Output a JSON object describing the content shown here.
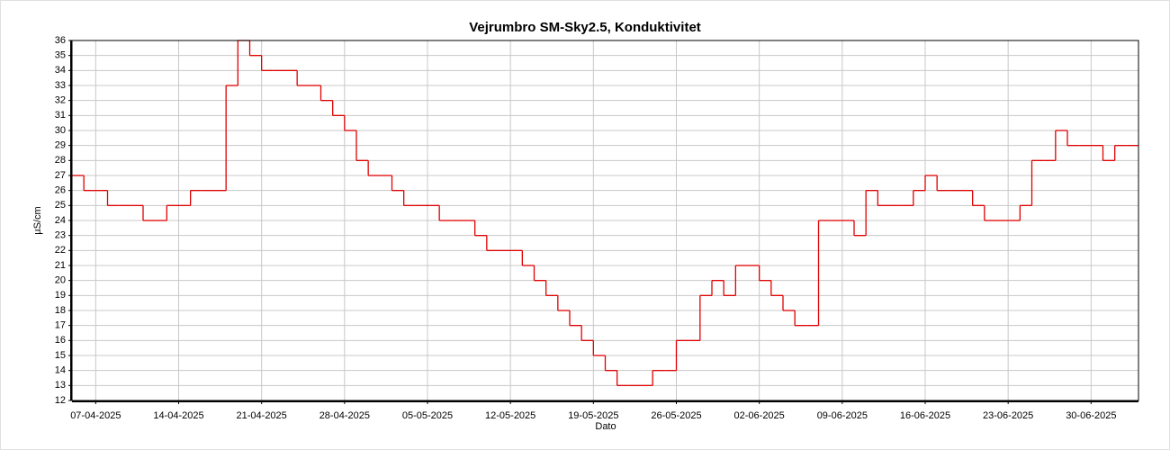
{
  "chart_data": {
    "type": "line",
    "step": true,
    "title": "Vejrumbro SM-Sky2.5, Konduktivitet",
    "x_label": "Dato",
    "y_label": "µS/cm",
    "x": [
      "05-04-2025",
      "06-04-2025",
      "07-04-2025",
      "08-04-2025",
      "09-04-2025",
      "10-04-2025",
      "11-04-2025",
      "12-04-2025",
      "13-04-2025",
      "14-04-2025",
      "15-04-2025",
      "16-04-2025",
      "17-04-2025",
      "18-04-2025",
      "19-04-2025",
      "20-04-2025",
      "21-04-2025",
      "22-04-2025",
      "23-04-2025",
      "24-04-2025",
      "25-04-2025",
      "26-04-2025",
      "27-04-2025",
      "28-04-2025",
      "29-04-2025",
      "30-04-2025",
      "01-05-2025",
      "02-05-2025",
      "03-05-2025",
      "04-05-2025",
      "05-05-2025",
      "06-05-2025",
      "07-05-2025",
      "08-05-2025",
      "09-05-2025",
      "10-05-2025",
      "11-05-2025",
      "12-05-2025",
      "13-05-2025",
      "14-05-2025",
      "15-05-2025",
      "16-05-2025",
      "17-05-2025",
      "18-05-2025",
      "19-05-2025",
      "20-05-2025",
      "21-05-2025",
      "22-05-2025",
      "23-05-2025",
      "24-05-2025",
      "25-05-2025",
      "26-05-2025",
      "27-05-2025",
      "28-05-2025",
      "29-05-2025",
      "30-05-2025",
      "31-05-2025",
      "01-06-2025",
      "02-06-2025",
      "03-06-2025",
      "04-06-2025",
      "05-06-2025",
      "06-06-2025",
      "07-06-2025",
      "08-06-2025",
      "09-06-2025",
      "10-06-2025",
      "11-06-2025",
      "12-06-2025",
      "13-06-2025",
      "14-06-2025",
      "15-06-2025",
      "16-06-2025",
      "17-06-2025",
      "18-06-2025",
      "19-06-2025",
      "20-06-2025",
      "21-06-2025",
      "22-06-2025",
      "23-06-2025",
      "24-06-2025",
      "25-06-2025",
      "26-06-2025",
      "27-06-2025",
      "28-06-2025",
      "29-06-2025",
      "30-06-2025",
      "01-07-2025",
      "02-07-2025",
      "03-07-2025"
    ],
    "series": [
      {
        "name": "Konduktivitet",
        "color": "#e00000",
        "values": [
          27,
          26,
          26,
          25,
          25,
          25,
          24,
          24,
          25,
          25,
          26,
          26,
          26,
          33,
          36,
          35,
          34,
          34,
          34,
          33,
          33,
          32,
          31,
          30,
          28,
          27,
          27,
          26,
          25,
          25,
          25,
          24,
          24,
          24,
          23,
          22,
          22,
          22,
          21,
          20,
          19,
          18,
          17,
          16,
          15,
          14,
          13,
          13,
          13,
          14,
          14,
          16,
          16,
          19,
          20,
          19,
          21,
          21,
          20,
          19,
          18,
          17,
          17,
          24,
          24,
          24,
          23,
          26,
          25,
          25,
          25,
          26,
          27,
          26,
          26,
          26,
          25,
          24,
          24,
          24,
          25,
          28,
          28,
          30,
          29,
          29,
          29,
          28,
          29,
          29
        ]
      }
    ],
    "xlim": [
      "05-04-2025",
      "04-07-2025"
    ],
    "xticks": [
      "07-04-2025",
      "14-04-2025",
      "21-04-2025",
      "28-04-2025",
      "05-05-2025",
      "12-05-2025",
      "19-05-2025",
      "26-05-2025",
      "02-06-2025",
      "09-06-2025",
      "16-06-2025",
      "23-06-2025",
      "30-06-2025"
    ],
    "ylim": [
      12,
      36
    ],
    "yticks": [
      12,
      13,
      14,
      15,
      16,
      17,
      18,
      19,
      20,
      21,
      22,
      23,
      24,
      25,
      26,
      27,
      28,
      29,
      30,
      31,
      32,
      33,
      34,
      35,
      36
    ],
    "grid": true
  }
}
